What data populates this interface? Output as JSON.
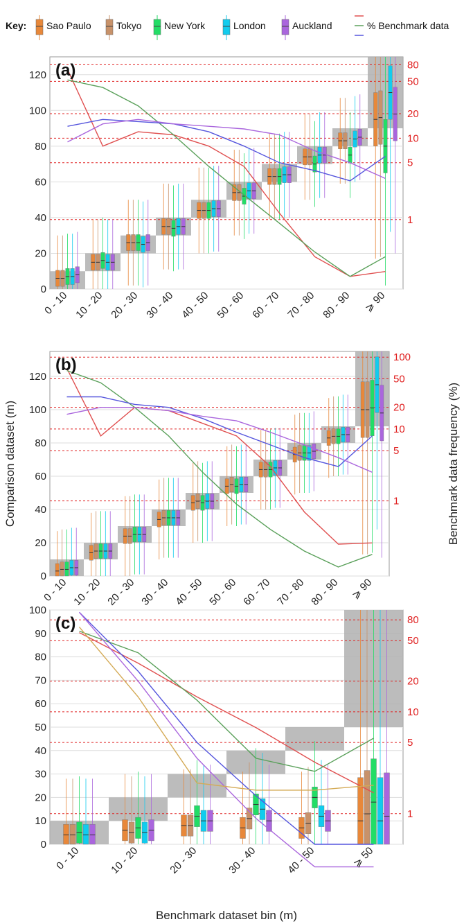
{
  "legend": {
    "key_label": "Key:",
    "entries": [
      {
        "name": "Sao Paulo",
        "color": "#e8883a"
      },
      {
        "name": "Tokyo",
        "color": "#c8926a"
      },
      {
        "name": "New York",
        "color": "#22dd66"
      },
      {
        "name": "London",
        "color": "#11ccee"
      },
      {
        "name": "Auckland",
        "color": "#aa66dd"
      }
    ],
    "benchmark_label": "% Benchmark data",
    "benchmark_colors": [
      "#e05050",
      "#5aa05a",
      "#5555dd"
    ]
  },
  "colors": {
    "grid_red": "#e02020",
    "bin_gray": "#b0b0b0",
    "tokyo_line": "#d4aa55"
  },
  "chart_data": [
    {
      "type": "box",
      "panel_label": "(a)",
      "categories": [
        "0 - 10",
        "10 - 20",
        "20 - 30",
        "30 - 40",
        "40 - 50",
        "50 - 60",
        "60 - 70",
        "70 - 80",
        "80 - 90",
        "⩾ 90"
      ],
      "ylim": [
        0,
        130
      ],
      "yticks": [
        "0",
        "20",
        "40",
        "60",
        "80",
        "100",
        "120"
      ],
      "right_ticks": [
        "80",
        "50",
        "20",
        "10",
        "5",
        "1"
      ],
      "right_tick_values": [
        80,
        50,
        20,
        10,
        5,
        1
      ],
      "right_range": [
        0.14,
        100
      ],
      "bins": [
        [
          0,
          10
        ],
        [
          10,
          20
        ],
        [
          20,
          30
        ],
        [
          30,
          40
        ],
        [
          40,
          50
        ],
        [
          50,
          60
        ],
        [
          60,
          70
        ],
        [
          70,
          80
        ],
        [
          80,
          90
        ],
        [
          90,
          130
        ]
      ],
      "box_medians": [
        [
          6,
          15,
          26,
          35,
          44,
          54,
          63,
          74,
          83,
          95
        ],
        [
          6,
          15,
          26,
          35,
          44,
          54,
          63,
          74,
          83,
          96
        ],
        [
          7,
          16,
          26,
          34,
          44,
          52,
          63,
          70,
          75,
          80
        ],
        [
          7,
          15,
          25,
          35,
          45,
          55,
          64,
          75,
          84,
          110
        ],
        [
          8,
          15,
          26,
          35,
          45,
          55,
          64,
          75,
          85,
          98
        ]
      ],
      "freq_series": [
        {
          "color": "#e05050",
          "values": [
            70,
            8,
            12,
            11,
            8,
            4.5,
            1.2,
            0.35,
            0.2,
            0.23
          ]
        },
        {
          "color": "#5aa05a",
          "values": [
            52,
            42,
            25,
            11,
            4.5,
            2,
            0.9,
            0.4,
            0.2,
            0.35
          ]
        },
        {
          "color": "#5555dd",
          "values": [
            14,
            17,
            16,
            15,
            12,
            8,
            5,
            4,
            3,
            6
          ]
        },
        {
          "color": "#aa66dd",
          "values": [
            9,
            15,
            17,
            15,
            14,
            13,
            11,
            7,
            5,
            3.2
          ]
        }
      ]
    },
    {
      "type": "box",
      "panel_label": "(b)",
      "ylabel": "Comparison dataset (m)",
      "right_label": "Benchmark data frequency (%)",
      "categories": [
        "0 - 10",
        "10 - 20",
        "20 - 30",
        "30 - 40",
        "40 - 50",
        "50 - 60",
        "60 - 70",
        "70 - 80",
        "80 - 90",
        "⩾ 90"
      ],
      "ylim": [
        0,
        135
      ],
      "yticks": [
        "0",
        "20",
        "40",
        "60",
        "80",
        "100",
        "120"
      ],
      "right_ticks": [
        "100",
        "50",
        "20",
        "10",
        "5",
        "1"
      ],
      "right_tick_values": [
        100,
        50,
        20,
        10,
        5,
        1
      ],
      "right_range": [
        0.09,
        120
      ],
      "bins": [
        [
          0,
          10
        ],
        [
          10,
          20
        ],
        [
          20,
          30
        ],
        [
          30,
          40
        ],
        [
          40,
          50
        ],
        [
          50,
          60
        ],
        [
          60,
          70
        ],
        [
          70,
          80
        ],
        [
          80,
          90
        ],
        [
          90,
          135
        ]
      ],
      "box_medians": [
        [
          3,
          14,
          24,
          34,
          44,
          54,
          64,
          73,
          83,
          100
        ],
        [
          4,
          15,
          24,
          35,
          45,
          55,
          64,
          74,
          84,
          100
        ],
        [
          4,
          15,
          25,
          35,
          44,
          54,
          64,
          74,
          84,
          101
        ],
        [
          5,
          15,
          25,
          35,
          45,
          55,
          65,
          74,
          85,
          115
        ],
        [
          5,
          15,
          25,
          35,
          45,
          55,
          65,
          75,
          85,
          98
        ]
      ],
      "freq_series": [
        {
          "color": "#e05050",
          "values": [
            70,
            8,
            20,
            18,
            12,
            8,
            3,
            0.7,
            0.25,
            0.26
          ]
        },
        {
          "color": "#5aa05a",
          "values": [
            65,
            44,
            20,
            8,
            2.5,
            0.9,
            0.4,
            0.2,
            0.12,
            0.18
          ]
        },
        {
          "color": "#5555dd",
          "values": [
            28,
            28,
            22,
            20,
            14,
            9,
            6,
            4,
            3,
            8
          ]
        },
        {
          "color": "#aa66dd",
          "values": [
            16,
            20,
            20,
            18,
            15,
            13,
            9,
            6,
            4,
            2.5
          ]
        }
      ]
    },
    {
      "type": "box",
      "panel_label": "(c)",
      "xlabel": "Benchmark dataset bin (m)",
      "categories": [
        "0 - 10",
        "10 - 20",
        "20 - 30",
        "30 - 40",
        "40 - 50",
        "⩾ 50"
      ],
      "ylim": [
        0,
        100
      ],
      "yticks": [
        "0",
        "10",
        "20",
        "30",
        "40",
        "50",
        "60",
        "70",
        "80",
        "90",
        "100"
      ],
      "right_ticks": [
        "80",
        "50",
        "20",
        "10",
        "5",
        "1"
      ],
      "right_tick_values": [
        80,
        50,
        20,
        10,
        5,
        1
      ],
      "right_range": [
        0.5,
        100
      ],
      "bins": [
        [
          0,
          10
        ],
        [
          10,
          20
        ],
        [
          20,
          30
        ],
        [
          30,
          40
        ],
        [
          40,
          50
        ],
        [
          50,
          100
        ]
      ],
      "box_medians": [
        [
          4,
          6,
          8,
          7,
          7,
          10
        ],
        [
          4,
          5,
          8,
          11,
          9,
          13
        ],
        [
          5,
          7,
          12,
          17,
          20,
          18
        ],
        [
          4,
          5,
          10,
          15,
          12,
          10
        ],
        [
          4,
          6,
          10,
          10,
          10,
          12
        ]
      ],
      "freq_series": [
        {
          "color": "#e05050",
          "values": [
            60,
            30,
            14,
            7,
            3.2,
            1.6
          ]
        },
        {
          "color": "#5aa05a",
          "values": [
            62,
            38,
            13,
            3.5,
            2.6,
            5.5
          ]
        },
        {
          "color": "#5555dd",
          "values": [
            95,
            25,
            5,
            1.5,
            0.5,
            0.5
          ]
        },
        {
          "color": "#aa66dd",
          "values": [
            95,
            20,
            3.5,
            0.9,
            0.3,
            0.3
          ]
        },
        {
          "color": "#d4aa55",
          "values": [
            68,
            14,
            2,
            1.7,
            1.7,
            1.9
          ]
        }
      ]
    }
  ]
}
